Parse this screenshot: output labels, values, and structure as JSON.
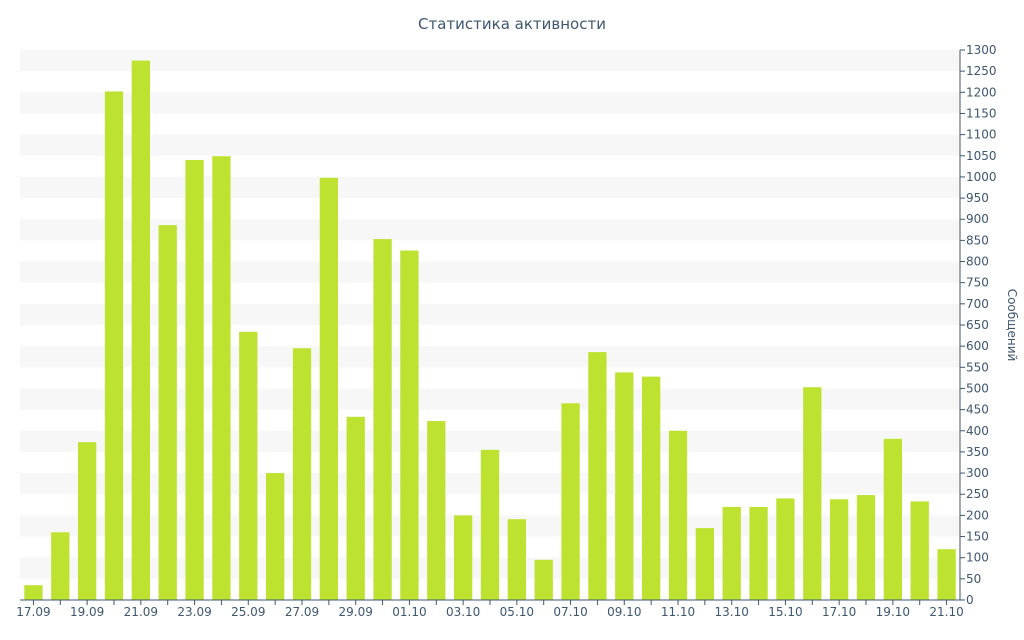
{
  "chart_data": {
    "type": "bar",
    "title": "Статистика активности",
    "xlabel": "",
    "ylabel": "Сообщений",
    "ylim": [
      0,
      1300
    ],
    "ytick_step": 50,
    "y_axis_side": "right",
    "grid": "alternating horizontal bands",
    "legend": "none",
    "bar_color": "#bde22f",
    "band_color": "#f7f7f7",
    "axis_color": "#3e576f",
    "categories": [
      "17.09",
      "18.09",
      "19.09",
      "20.09",
      "21.09",
      "22.09",
      "23.09",
      "24.09",
      "25.09",
      "26.09",
      "27.09",
      "28.09",
      "29.09",
      "30.09",
      "01.10",
      "02.10",
      "03.10",
      "04.10",
      "05.10",
      "06.10",
      "07.10",
      "08.10",
      "09.10",
      "10.10",
      "11.10",
      "12.10",
      "13.10",
      "14.10",
      "15.10",
      "16.10",
      "17.10",
      "18.10",
      "19.10",
      "20.10",
      "21.10"
    ],
    "x_tick_labels": [
      "17.09",
      "19.09",
      "21.09",
      "23.09",
      "25.09",
      "27.09",
      "29.09",
      "01.10",
      "03.10",
      "05.10",
      "07.10",
      "09.10",
      "11.10",
      "13.10",
      "15.10",
      "17.10",
      "19.10",
      "21.10"
    ],
    "values": [
      35,
      160,
      373,
      1202,
      1275,
      886,
      1040,
      1049,
      634,
      300,
      595,
      998,
      433,
      853,
      826,
      423,
      200,
      355,
      191,
      95,
      465,
      586,
      538,
      528,
      400,
      170,
      220,
      220,
      240,
      503,
      238,
      248,
      381,
      233,
      120
    ]
  }
}
